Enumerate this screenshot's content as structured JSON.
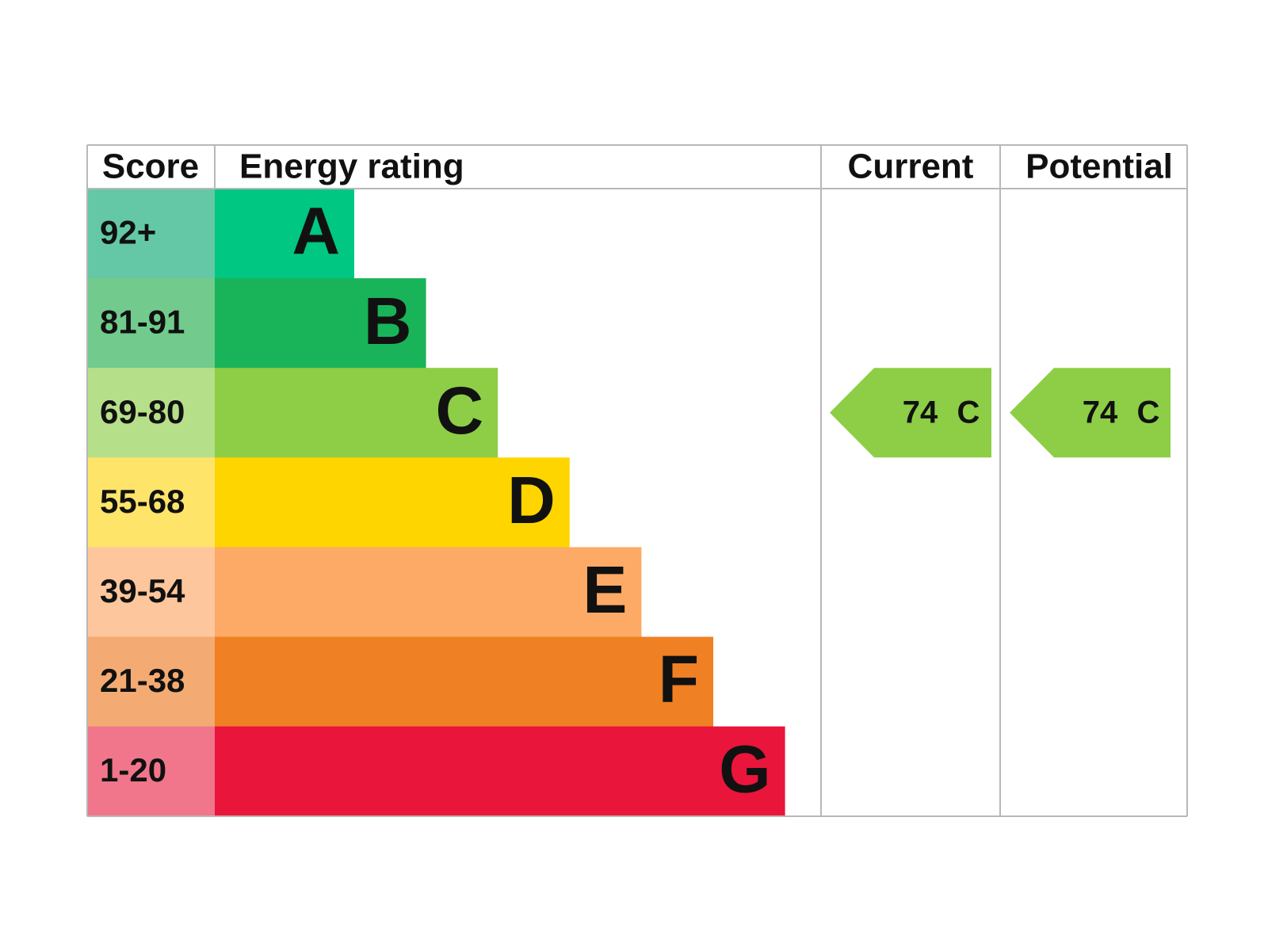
{
  "header": {
    "score": "Score",
    "energy_rating": "Energy rating",
    "current": "Current",
    "potential": "Potential"
  },
  "bands": [
    {
      "score": "92+",
      "letter": "A",
      "color": "#00c781",
      "score_color": "#64c8a6"
    },
    {
      "score": "81-91",
      "letter": "B",
      "color": "#19b459",
      "score_color": "#72cb8c"
    },
    {
      "score": "69-80",
      "letter": "C",
      "color": "#8dce46",
      "score_color": "#b6df8a"
    },
    {
      "score": "55-68",
      "letter": "D",
      "color": "#ffd500",
      "score_color": "#ffe46a"
    },
    {
      "score": "39-54",
      "letter": "E",
      "color": "#fcaa65",
      "score_color": "#fdc69c"
    },
    {
      "score": "21-38",
      "letter": "F",
      "color": "#ef8023",
      "score_color": "#f4ab73"
    },
    {
      "score": "1-20",
      "letter": "G",
      "color": "#e9153b",
      "score_color": "#f1768b"
    }
  ],
  "current": {
    "value": 74,
    "letter": "C"
  },
  "potential": {
    "value": 74,
    "letter": "C"
  }
}
